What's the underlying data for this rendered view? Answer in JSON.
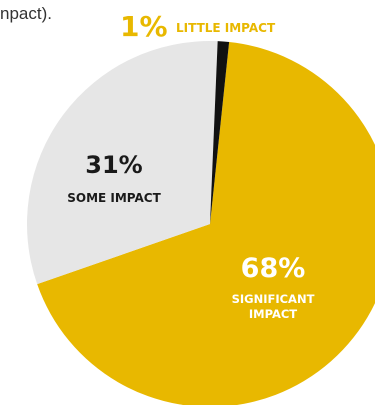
{
  "intro_fragment": "npact).",
  "chart_data": {
    "type": "pie",
    "slices": [
      {
        "label": "SIGNIFICANT IMPACT",
        "value": 68,
        "value_label": "68%",
        "color": "#E8B800"
      },
      {
        "label": "SOME IMPACT",
        "value": 31,
        "value_label": "31%",
        "color": "#E6E6E6"
      },
      {
        "label": "LITTLE IMPACT",
        "value": 1,
        "value_label": "1%",
        "color": "#111111"
      }
    ],
    "start_angle_deg": 6,
    "direction": "clockwise"
  },
  "labels": {
    "little": {
      "value": "1%",
      "category": "LITTLE IMPACT"
    },
    "some": {
      "value": "31%",
      "category": "SOME IMPACT"
    },
    "significant": {
      "value": "68%",
      "category_line1": "SIGNIFICANT",
      "category_line2": "IMPACT"
    }
  },
  "colors": {
    "accent": "#E8B800",
    "label_dark": "#1a1a1a",
    "label_light": "#ffffff"
  }
}
